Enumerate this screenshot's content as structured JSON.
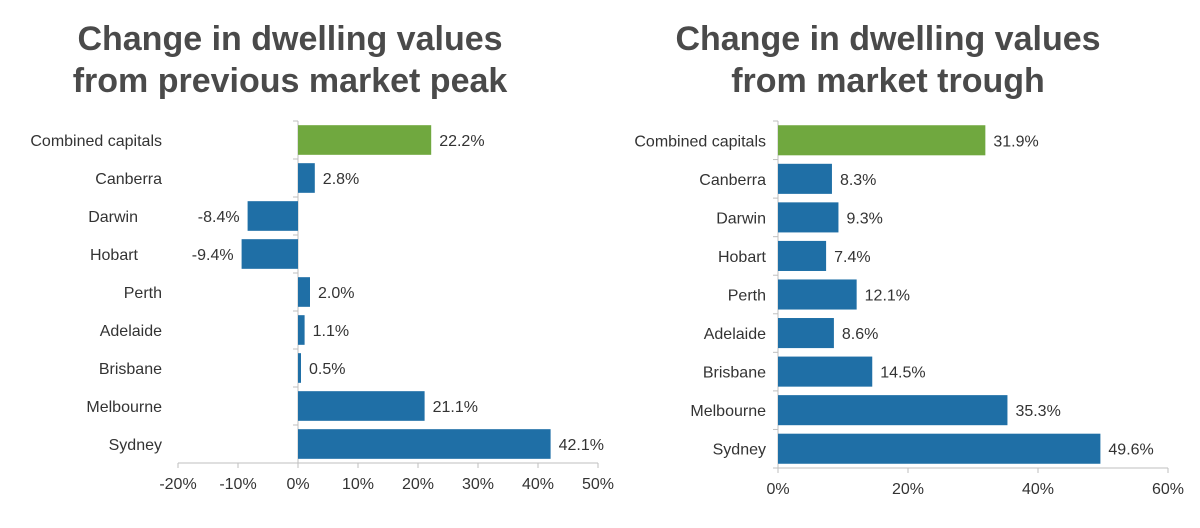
{
  "colors": {
    "highlight": "#70a83f",
    "bar": "#1f6fa6",
    "axis": "#bfbfbf",
    "text": "#333333",
    "title": "#4a4a4a"
  },
  "chart_data": [
    {
      "type": "bar",
      "orientation": "horizontal",
      "title_lines": [
        "Change in dwelling values",
        "from previous market peak"
      ],
      "categories": [
        "Combined capitals",
        "Canberra",
        "Darwin",
        "Hobart",
        "Perth",
        "Adelaide",
        "Brisbane",
        "Melbourne",
        "Sydney"
      ],
      "values": [
        22.2,
        2.8,
        -8.4,
        -9.4,
        2.0,
        1.1,
        0.5,
        21.1,
        42.1
      ],
      "value_labels": [
        "22.2%",
        "2.8%",
        "-8.4%",
        "-9.4%",
        "2.0%",
        "1.1%",
        "0.5%",
        "21.1%",
        "42.1%"
      ],
      "xlim": [
        -20,
        50
      ],
      "xticks": [
        -20,
        -10,
        0,
        10,
        20,
        30,
        40,
        50
      ],
      "xtick_labels": [
        "-20%",
        "-10%",
        "0%",
        "10%",
        "20%",
        "30%",
        "40%",
        "50%"
      ],
      "highlight_category": "Combined capitals",
      "grid": false
    },
    {
      "type": "bar",
      "orientation": "horizontal",
      "title_lines": [
        "Change in dwelling values",
        "from market trough"
      ],
      "categories": [
        "Combined capitals",
        "Canberra",
        "Darwin",
        "Hobart",
        "Perth",
        "Adelaide",
        "Brisbane",
        "Melbourne",
        "Sydney"
      ],
      "values": [
        31.9,
        8.3,
        9.3,
        7.4,
        12.1,
        8.6,
        14.5,
        35.3,
        49.6
      ],
      "value_labels": [
        "31.9%",
        "8.3%",
        "9.3%",
        "7.4%",
        "12.1%",
        "8.6%",
        "14.5%",
        "35.3%",
        "49.6%"
      ],
      "xlim": [
        0,
        60
      ],
      "xticks": [
        0,
        20,
        40,
        60
      ],
      "xtick_labels": [
        "0%",
        "20%",
        "40%",
        "60%"
      ],
      "highlight_category": "Combined capitals",
      "grid": false
    }
  ]
}
